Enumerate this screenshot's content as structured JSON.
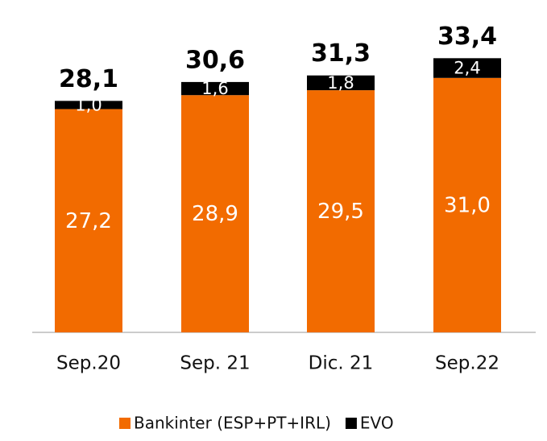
{
  "chart_data": {
    "type": "stacked_bar",
    "categories": [
      "Sep.20",
      "Sep. 21",
      "Dic. 21",
      "Sep.22"
    ],
    "series": [
      {
        "name": "Bankinter (ESP+PT+IRL)",
        "color": "#f26b00",
        "values": [
          27.2,
          28.9,
          29.5,
          31.0
        ],
        "value_labels": [
          "27,2",
          "28,9",
          "29,5",
          "31,0"
        ]
      },
      {
        "name": "EVO",
        "color": "#000000",
        "values": [
          1.0,
          1.6,
          1.8,
          2.4
        ],
        "value_labels": [
          "1,0",
          "1,6",
          "1,8",
          "2,4"
        ]
      }
    ],
    "totals": [
      28.1,
      30.6,
      31.3,
      33.4
    ],
    "total_labels": [
      "28,1",
      "30,6",
      "31,3",
      "33,4"
    ],
    "legend": "bottom"
  }
}
